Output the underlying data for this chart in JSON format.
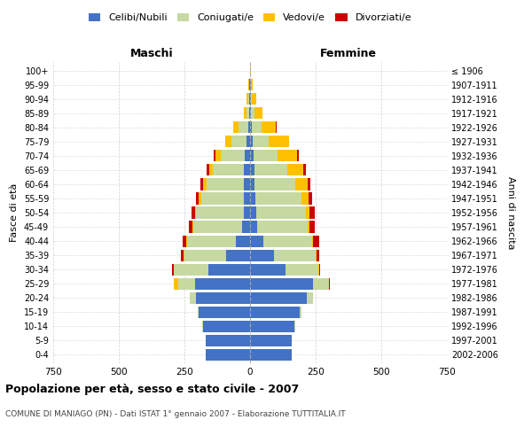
{
  "age_groups": [
    "0-4",
    "5-9",
    "10-14",
    "15-19",
    "20-24",
    "25-29",
    "30-34",
    "35-39",
    "40-44",
    "45-49",
    "50-54",
    "55-59",
    "60-64",
    "65-69",
    "70-74",
    "75-79",
    "80-84",
    "85-89",
    "90-94",
    "95-99",
    "100+"
  ],
  "birth_years": [
    "2002-2006",
    "1997-2001",
    "1992-1996",
    "1987-1991",
    "1982-1986",
    "1977-1981",
    "1972-1976",
    "1967-1971",
    "1962-1966",
    "1957-1961",
    "1952-1956",
    "1947-1951",
    "1942-1946",
    "1937-1941",
    "1932-1936",
    "1927-1931",
    "1922-1926",
    "1917-1921",
    "1912-1916",
    "1907-1911",
    "≤ 1906"
  ],
  "male_celibi": [
    170,
    170,
    180,
    195,
    205,
    210,
    160,
    90,
    55,
    30,
    25,
    22,
    22,
    22,
    20,
    12,
    8,
    5,
    3,
    2,
    0
  ],
  "male_coniugati": [
    0,
    0,
    2,
    5,
    25,
    65,
    130,
    160,
    185,
    185,
    180,
    165,
    145,
    120,
    90,
    60,
    35,
    10,
    5,
    2,
    0
  ],
  "male_vedovi": [
    0,
    0,
    0,
    0,
    0,
    15,
    2,
    2,
    3,
    3,
    5,
    8,
    12,
    15,
    22,
    22,
    20,
    10,
    5,
    2,
    0
  ],
  "male_divorziati": [
    0,
    0,
    0,
    0,
    0,
    2,
    5,
    12,
    15,
    15,
    12,
    12,
    10,
    10,
    5,
    2,
    0,
    0,
    0,
    0,
    0
  ],
  "female_celibi": [
    160,
    160,
    170,
    190,
    215,
    240,
    135,
    90,
    50,
    28,
    22,
    20,
    18,
    18,
    15,
    10,
    8,
    5,
    3,
    2,
    0
  ],
  "female_coniugati": [
    0,
    0,
    2,
    5,
    25,
    60,
    125,
    160,
    185,
    190,
    190,
    175,
    155,
    125,
    90,
    62,
    35,
    12,
    5,
    2,
    0
  ],
  "female_vedovi": [
    0,
    0,
    0,
    0,
    0,
    2,
    2,
    3,
    5,
    8,
    15,
    28,
    45,
    60,
    75,
    75,
    55,
    30,
    15,
    5,
    2
  ],
  "female_divorziati": [
    0,
    0,
    0,
    0,
    0,
    2,
    5,
    12,
    22,
    20,
    18,
    15,
    12,
    10,
    5,
    2,
    2,
    0,
    0,
    0,
    0
  ],
  "colors": {
    "celibi": "#4472C4",
    "coniugati": "#c5d9a0",
    "vedovi": "#ffc000",
    "divorziati": "#cc0000"
  },
  "legend_labels": [
    "Celibi/Nubili",
    "Coniugati/e",
    "Vedovi/e",
    "Divorziati/e"
  ],
  "title": "Popolazione per età, sesso e stato civile - 2007",
  "subtitle": "COMUNE DI MANIAGO (PN) - Dati ISTAT 1° gennaio 2007 - Elaborazione TUTTITALIA.IT",
  "xlabel_left": "Maschi",
  "xlabel_right": "Femmine",
  "ylabel_left": "Fasce di età",
  "ylabel_right": "Anni di nascita",
  "xlim": 750,
  "background_color": "#ffffff",
  "grid_color": "#cccccc"
}
